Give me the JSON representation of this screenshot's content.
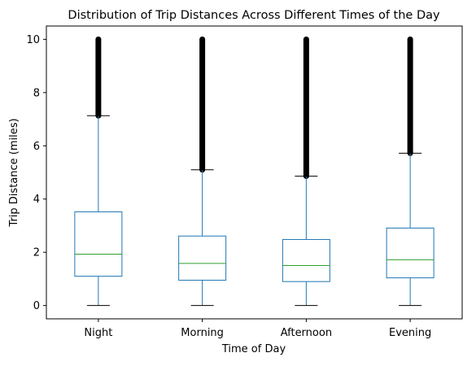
{
  "chart_data": {
    "type": "box",
    "title": "Distribution of Trip Distances Across Different Times of the Day",
    "xlabel": "Time of Day",
    "ylabel": "Trip Distance (miles)",
    "ylim": [
      -0.5,
      10.5
    ],
    "yticks": [
      0,
      2,
      4,
      6,
      8,
      10
    ],
    "grid": false,
    "categories": [
      "Night",
      "Morning",
      "Afternoon",
      "Evening"
    ],
    "boxes": [
      {
        "category": "Night",
        "whisker_low": 0,
        "q1": 1.1,
        "median": 1.93,
        "q3": 3.52,
        "whisker_high": 7.13,
        "outliers_range": [
          7.13,
          10
        ]
      },
      {
        "category": "Morning",
        "whisker_low": 0,
        "q1": 0.95,
        "median": 1.58,
        "q3": 2.61,
        "whisker_high": 5.1,
        "outliers_range": [
          5.1,
          10
        ]
      },
      {
        "category": "Afternoon",
        "whisker_low": 0,
        "q1": 0.9,
        "median": 1.5,
        "q3": 2.48,
        "whisker_high": 4.86,
        "outliers_range": [
          4.86,
          10
        ]
      },
      {
        "category": "Evening",
        "whisker_low": 0,
        "q1": 1.04,
        "median": 1.72,
        "q3": 2.91,
        "whisker_high": 5.72,
        "outliers_range": [
          5.72,
          10
        ]
      }
    ],
    "colors": {
      "box": "#1f77b4",
      "median": "#2ca02c",
      "caps": "#000000",
      "outliers": "#000000"
    }
  }
}
